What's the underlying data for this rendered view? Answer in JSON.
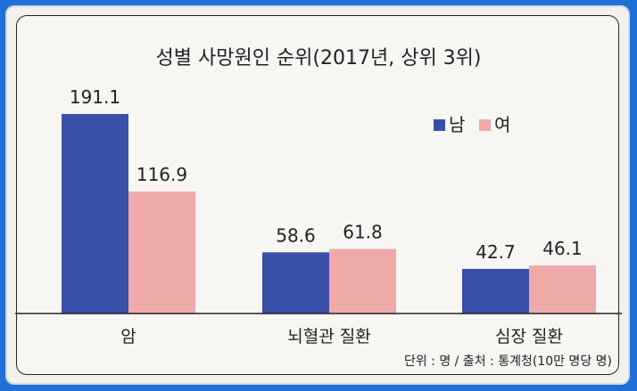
{
  "chart_data": {
    "type": "bar",
    "title": "성별 사망원인 순위(2017년, 상위 3위)",
    "categories": [
      "암",
      "뇌혈관 질환",
      "심장 질환"
    ],
    "series": [
      {
        "name": "남",
        "values": [
          191.1,
          58.6,
          42.7
        ],
        "labels": [
          "191.1",
          "58.6",
          "42.7"
        ]
      },
      {
        "name": "여",
        "values": [
          116.9,
          61.8,
          46.1
        ],
        "labels": [
          "116.9",
          "61.8",
          "46.1"
        ]
      }
    ],
    "colors": {
      "남": "#3a4fa8",
      "여": "#f0a9a9"
    },
    "ylim": [
      0,
      200
    ],
    "legend_position": "top-right",
    "source_note": "단위 : 명 / 출처 : 통계청(10만 명당 명)"
  }
}
